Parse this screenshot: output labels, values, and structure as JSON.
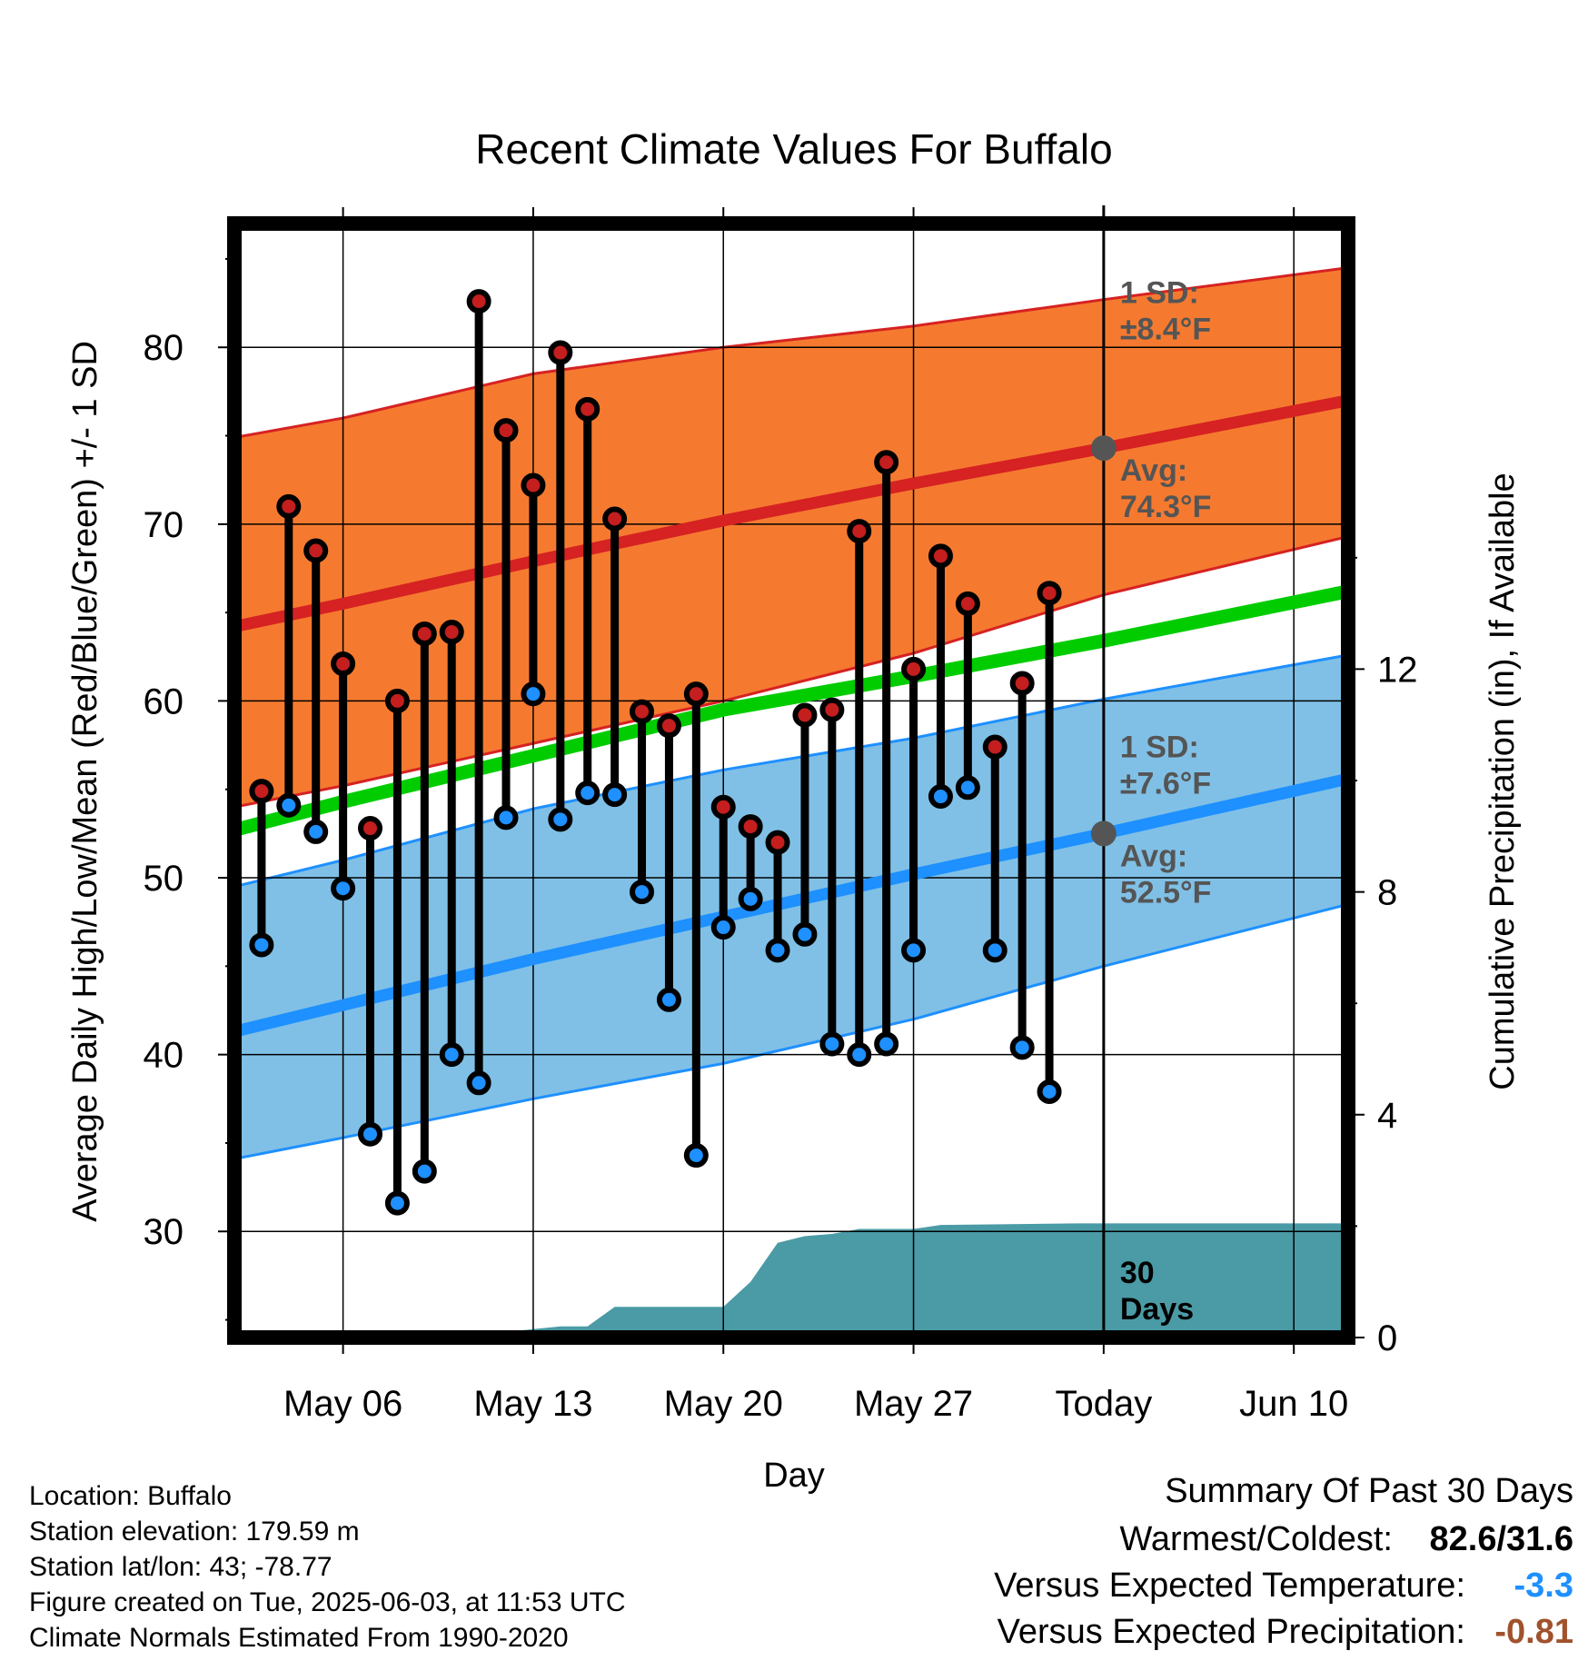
{
  "chart_data": {
    "type": "line",
    "title": "Recent Climate Values For Buffalo",
    "xlabel": "Day",
    "ylabel": "Average Daily High/Low/Mean (Red/Blue/Green) +/- 1 SD",
    "y2label": "Cumulative Precipitation (in), If Available",
    "xlim": [
      "2025-05-02",
      "2025-06-12"
    ],
    "ylim": [
      24,
      87
    ],
    "y2lim": [
      0,
      20
    ],
    "x_tick_labels": [
      "May 06",
      "May 13",
      "May 20",
      "May 27",
      "Today",
      "Jun 10"
    ],
    "x_tick_dates": [
      "2025-05-06",
      "2025-05-13",
      "2025-05-20",
      "2025-05-27",
      "2025-06-03",
      "2025-06-10"
    ],
    "y_ticks": [
      30,
      40,
      50,
      60,
      70,
      80
    ],
    "y2_ticks": [
      0,
      4,
      8,
      12
    ],
    "today": "2025-06-03",
    "grid": true,
    "colors": {
      "high_band": "#f57a30",
      "high_line": "#d62222",
      "low_band": "#80c0e6",
      "low_line": "#1e90ff",
      "mean_line": "#00cc00",
      "precip": "#4a9ba5",
      "high_marker": "#c41e1e",
      "low_marker": "#1e90ff",
      "annotation": "#555555"
    },
    "normals": {
      "x": [
        "2025-05-02",
        "2025-05-06",
        "2025-05-13",
        "2025-05-20",
        "2025-05-27",
        "2025-06-03",
        "2025-06-12"
      ],
      "high_avg": [
        64.2,
        65.5,
        67.9,
        70.2,
        72.3,
        74.3,
        77.0
      ],
      "high_upper": [
        74.9,
        76.0,
        78.5,
        80.0,
        81.2,
        82.7,
        84.5
      ],
      "high_lower": [
        54.0,
        55.2,
        57.6,
        60.0,
        62.7,
        66.0,
        69.3
      ],
      "mean": [
        52.7,
        54.3,
        56.9,
        59.5,
        61.4,
        63.4,
        66.2
      ],
      "low_avg": [
        41.3,
        42.8,
        45.4,
        47.8,
        50.2,
        52.5,
        55.6
      ],
      "low_upper": [
        49.5,
        51.0,
        53.9,
        56.1,
        57.9,
        60.1,
        62.6
      ],
      "low_lower": [
        34.1,
        35.3,
        37.5,
        39.5,
        42.0,
        45.0,
        48.5
      ]
    },
    "series": [
      {
        "name": "High",
        "x": [
          "2025-05-03",
          "2025-05-04",
          "2025-05-05",
          "2025-05-06",
          "2025-05-07",
          "2025-05-08",
          "2025-05-09",
          "2025-05-10",
          "2025-05-11",
          "2025-05-12",
          "2025-05-13",
          "2025-05-14",
          "2025-05-15",
          "2025-05-16",
          "2025-05-17",
          "2025-05-18",
          "2025-05-19",
          "2025-05-20",
          "2025-05-21",
          "2025-05-22",
          "2025-05-23",
          "2025-05-24",
          "2025-05-25",
          "2025-05-26",
          "2025-05-27",
          "2025-05-28",
          "2025-05-29",
          "2025-05-30",
          "2025-05-31",
          "2025-06-01",
          "2025-06-02"
        ],
        "values": [
          54.9,
          71.0,
          68.5,
          62.1,
          52.8,
          60.0,
          63.8,
          63.9,
          82.6,
          75.3,
          72.2,
          79.7,
          76.5,
          70.3,
          59.4,
          58.6,
          60.4,
          54.0,
          52.9,
          52.0,
          59.2,
          59.5,
          69.6,
          73.5,
          61.8,
          68.2,
          65.5,
          57.4,
          61.0,
          66.1,
          null
        ]
      },
      {
        "name": "Low",
        "x": [
          "2025-05-03",
          "2025-05-04",
          "2025-05-05",
          "2025-05-06",
          "2025-05-07",
          "2025-05-08",
          "2025-05-09",
          "2025-05-10",
          "2025-05-11",
          "2025-05-12",
          "2025-05-13",
          "2025-05-14",
          "2025-05-15",
          "2025-05-16",
          "2025-05-17",
          "2025-05-18",
          "2025-05-19",
          "2025-05-20",
          "2025-05-21",
          "2025-05-22",
          "2025-05-23",
          "2025-05-24",
          "2025-05-25",
          "2025-05-26",
          "2025-05-27",
          "2025-05-28",
          "2025-05-29",
          "2025-05-30",
          "2025-05-31",
          "2025-06-01",
          "2025-06-02"
        ],
        "values": [
          46.2,
          54.1,
          52.6,
          49.4,
          35.5,
          31.6,
          33.4,
          40.0,
          38.4,
          53.4,
          60.4,
          53.3,
          54.8,
          54.7,
          49.2,
          43.1,
          34.3,
          47.2,
          48.8,
          45.9,
          46.8,
          40.6,
          40.0,
          40.6,
          45.9,
          54.6,
          55.1,
          45.9,
          40.4,
          37.9,
          null
        ]
      },
      {
        "name": "Cumulative Precipitation",
        "x": [
          "2025-05-02",
          "2025-05-05",
          "2025-05-06",
          "2025-05-12",
          "2025-05-13",
          "2025-05-14",
          "2025-05-15",
          "2025-05-16",
          "2025-05-19",
          "2025-05-20",
          "2025-05-21",
          "2025-05-22",
          "2025-05-23",
          "2025-05-24",
          "2025-05-25",
          "2025-05-26",
          "2025-05-27",
          "2025-05-28",
          "2025-06-02",
          "2025-06-12"
        ],
        "values": [
          0.0,
          0.0,
          0.1,
          0.1,
          0.15,
          0.2,
          0.2,
          0.55,
          0.55,
          0.55,
          1.0,
          1.7,
          1.82,
          1.86,
          1.95,
          1.95,
          1.95,
          2.02,
          2.05,
          2.05
        ]
      }
    ],
    "annotations": {
      "high_sd": [
        "1 SD:",
        "±8.4°F"
      ],
      "high_avg": [
        "Avg:",
        "74.3°F"
      ],
      "low_sd": [
        "1 SD:",
        "±7.6°F"
      ],
      "low_avg": [
        "Avg:",
        "52.5°F"
      ],
      "precip_days": [
        "30",
        "Days"
      ]
    }
  },
  "info": {
    "location": "Location: Buffalo",
    "elevation": "Station elevation: 179.59 m",
    "latlon": "Station lat/lon: 43; -78.77",
    "created": "Figure created on Tue, 2025-06-03, at 11:53 UTC",
    "normals": "Climate Normals Estimated From 1990-2020"
  },
  "summary": {
    "title": "Summary Of Past 30 Days",
    "warm_cold_label": "Warmest/Coldest:",
    "warm_cold_value": "82.6/31.6",
    "temp_label": "Versus Expected Temperature:",
    "temp_value": "-3.3",
    "temp_color": "#1e90ff",
    "precip_label": "Versus Expected Precipitation:",
    "precip_value": "-0.81",
    "precip_color": "#a0522d"
  }
}
